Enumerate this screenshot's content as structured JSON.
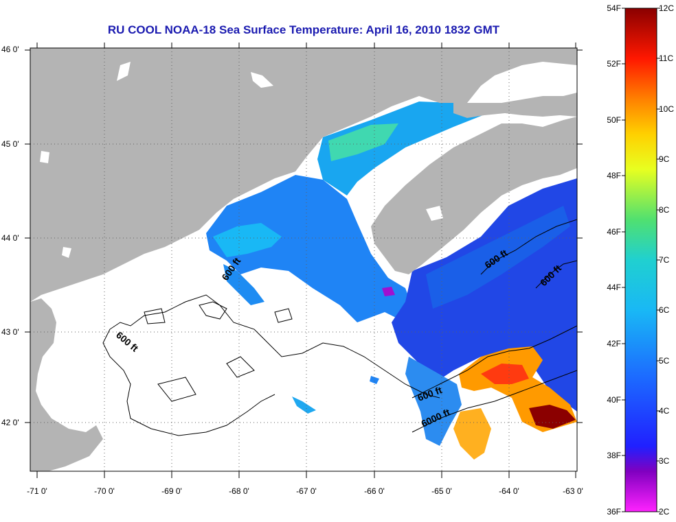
{
  "title": "RU COOL  NOAA-18  Sea Surface Temperature:  April 16, 2010 1832 GMT",
  "axes": {
    "lat_ticks": [
      "46 0'",
      "45 0'",
      "44 0'",
      "43 0'",
      "42 0'"
    ],
    "lon_ticks": [
      "-71 0'",
      "-70 0'",
      "-69 0'",
      "-68 0'",
      "-67 0'",
      "-66 0'",
      "-65 0'",
      "-64 0'",
      "-63 0'"
    ]
  },
  "contours": [
    {
      "label": "600 ft"
    },
    {
      "label": "600 ft"
    },
    {
      "label": "600 ft"
    },
    {
      "label": "600 ft"
    },
    {
      "label": "600 ft"
    },
    {
      "label": "6000 ft"
    }
  ],
  "colorbar": {
    "fahrenheit": [
      "54F",
      "52F",
      "50F",
      "48F",
      "46F",
      "44F",
      "42F",
      "40F",
      "38F",
      "36F"
    ],
    "celsius": [
      "12C",
      "11C",
      "10C",
      "9C",
      "8C",
      "7C",
      "6C",
      "5C",
      "4C",
      "3C",
      "2C"
    ]
  },
  "colors": {
    "land": "#b4b4b4",
    "title": "#1a1ab0",
    "cold": "#1e3fe0",
    "mid": "#19a6f0",
    "warm": "#ff8c00",
    "hot": "#8b0000"
  }
}
